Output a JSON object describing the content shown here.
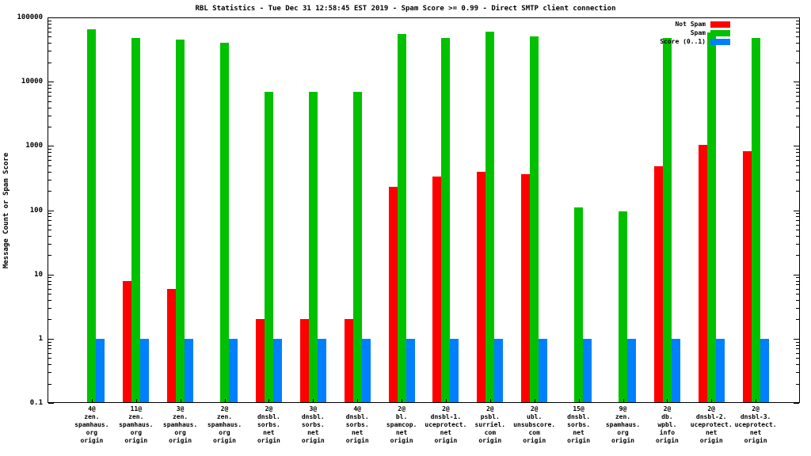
{
  "chart_data": {
    "type": "bar",
    "title": "RBL Statistics - Tue Dec 31 12:58:45 EST 2019 - Spam Score >= 0.99 - Direct SMTP client connection",
    "ylabel": "Message Count or Spam Score",
    "xlabel": "",
    "yscale": "log",
    "ylim": [
      0.1,
      100000
    ],
    "ytick_values": [
      100000,
      10000,
      1000,
      100,
      10,
      1,
      0.1
    ],
    "ytick_labels": [
      "100000",
      "10000",
      "1000",
      "100",
      "10",
      "1",
      "0.1"
    ],
    "grid": false,
    "legend_position": "top-right",
    "categories": [
      [
        "4@",
        "zen.",
        "spamhaus.",
        "org",
        "origin"
      ],
      [
        "11@",
        "zen.",
        "spamhaus.",
        "org",
        "origin"
      ],
      [
        "3@",
        "zen.",
        "spamhaus.",
        "org",
        "origin"
      ],
      [
        "2@",
        "zen.",
        "spamhaus.",
        "org",
        "origin"
      ],
      [
        "2@",
        "dnsbl.",
        "sorbs.",
        "net",
        "origin"
      ],
      [
        "3@",
        "dnsbl.",
        "sorbs.",
        "net",
        "origin"
      ],
      [
        "4@",
        "dnsbl.",
        "sorbs.",
        "net",
        "origin"
      ],
      [
        "2@",
        "bl.",
        "spamcop.",
        "net",
        "origin"
      ],
      [
        "2@",
        "dnsbl-1.",
        "uceprotect.",
        "net",
        "origin"
      ],
      [
        "2@",
        "psbl.",
        "surriel.",
        "com",
        "origin"
      ],
      [
        "2@",
        "ubl.",
        "unsubscore.",
        "com",
        "origin"
      ],
      [
        "15@",
        "dnsbl.",
        "sorbs.",
        "net",
        "origin"
      ],
      [
        "9@",
        "zen.",
        "spamhaus.",
        "org",
        "origin"
      ],
      [
        "2@",
        "db.",
        "wpbl.",
        "info",
        "origin"
      ],
      [
        "2@",
        "dnsbl-2.",
        "uceprotect.",
        "net",
        "origin"
      ],
      [
        "2@",
        "dnsbl-3.",
        "uceprotect.",
        "net",
        "origin"
      ]
    ],
    "series": [
      {
        "name": "Not Spam",
        "color": "#ff0000",
        "values": [
          0,
          8,
          6,
          0,
          2,
          2,
          2,
          230,
          330,
          400,
          360,
          0,
          0,
          490,
          1050,
          820
        ]
      },
      {
        "name": "Spam",
        "color": "#00c000",
        "values": [
          65000,
          48000,
          45000,
          40000,
          7000,
          7000,
          7000,
          55000,
          48000,
          60000,
          50000,
          110,
          95,
          48000,
          58000,
          48000
        ]
      },
      {
        "name": "Score (0..1)",
        "color": "#0080ff",
        "values": [
          1,
          1,
          1,
          1,
          1,
          1,
          1,
          1,
          1,
          1,
          1,
          1,
          1,
          1,
          1,
          1
        ]
      }
    ]
  }
}
